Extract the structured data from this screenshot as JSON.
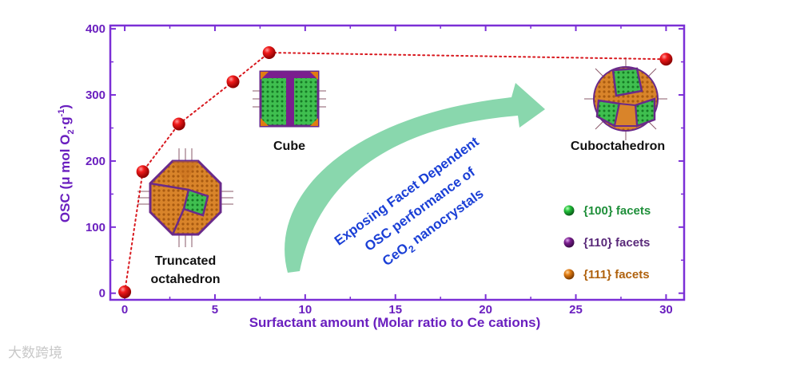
{
  "chart_data": {
    "type": "scatter",
    "xlabel": "Surfactant amount (Molar ratio to Ce cations)",
    "ylabel": "OSC (μ mol O₂·g⁻¹)",
    "ylabel_parts": [
      "OSC (μ mol O",
      "2",
      "·g",
      "-1",
      ")"
    ],
    "xlim": [
      -0.8,
      31
    ],
    "ylim": [
      -10,
      405
    ],
    "xticks": [
      "0",
      "5",
      "10",
      "15",
      "20",
      "25",
      "30"
    ],
    "yticks": [
      "0",
      "100",
      "200",
      "300",
      "400"
    ],
    "x": [
      0,
      1,
      3,
      6,
      8,
      30
    ],
    "y": [
      2,
      184,
      256,
      320,
      364,
      354
    ],
    "marker_color": "#e8141a",
    "line_color": "#d8181e",
    "annotations": {
      "truncated": [
        "Truncated",
        "octahedron"
      ],
      "cube": "Cube",
      "cuboctahedron": "Cuboctahedron"
    },
    "arrow_text": {
      "line1": "Exposing Facet Dependent",
      "line2": "OSC performance of",
      "line3_parts": [
        "CeO",
        "2",
        " nanocrystals"
      ]
    },
    "legend": [
      {
        "label": "{100} facets",
        "color": "#1fa84a",
        "text_color": "#1f8f3a"
      },
      {
        "label": "{110} facets",
        "color": "#7a1e8e",
        "text_color": "#5a2a7a"
      },
      {
        "label": "{111} facets",
        "color": "#e07b12",
        "text_color": "#b0620e"
      }
    ],
    "axis_color": "#7b2fd6",
    "arrow_color": "#7fd4a6"
  },
  "watermark": "大数跨境"
}
